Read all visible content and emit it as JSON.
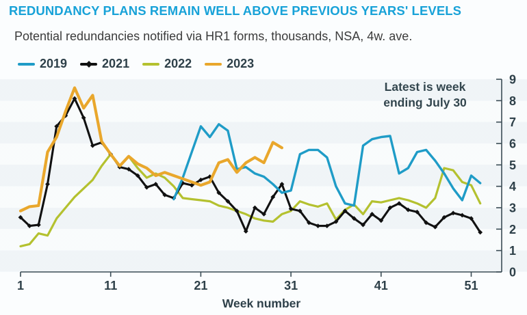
{
  "header": {
    "title": "REDUNDANCY PLANS REMAIN WELL ABOVE PREVIOUS YEARS' LEVELS",
    "subtitle": "Potential redundancies notified via HR1 forms, thousands, NSA, 4w. ave."
  },
  "legend": [
    {
      "label": "2019",
      "color": "#1f9cc7",
      "marker": "none"
    },
    {
      "label": "2021",
      "color": "#111111",
      "marker": "diamond"
    },
    {
      "label": "2022",
      "color": "#b4c12f",
      "marker": "none"
    },
    {
      "label": "2023",
      "color": "#e9a72c",
      "marker": "none"
    }
  ],
  "annotation": {
    "line1": "Latest is week",
    "line2": "ending July 30"
  },
  "colors": {
    "title": "#18a2d8",
    "axis": "#3b4c55",
    "teal_2019": "#1f9cc7",
    "black_2021": "#111111",
    "green_2022": "#b4c12f",
    "orange_2023": "#e9a72c"
  },
  "chart_data": {
    "type": "line",
    "title": "REDUNDANCY PLANS REMAIN WELL ABOVE PREVIOUS YEARS' LEVELS",
    "subtitle": "Potential redundancies notified via HR1 forms, thousands, NSA, 4w. ave.",
    "xlabel": "Week number",
    "ylabel": "",
    "xlim": [
      1,
      52
    ],
    "ylim": [
      0,
      9
    ],
    "x_ticks": [
      1,
      11,
      21,
      31,
      41,
      51
    ],
    "y_ticks": [
      0,
      1,
      2,
      3,
      4,
      5,
      6,
      7,
      8,
      9
    ],
    "grid": false,
    "legend_position": "top-left",
    "y_axis_side": "right",
    "annotation": "Latest is week ending July 30",
    "series": [
      {
        "name": "2019",
        "color": "#1f9cc7",
        "width": 3.4,
        "marker": "none",
        "start_week": 18,
        "values": [
          3.4,
          4.4,
          5.6,
          6.8,
          6.3,
          6.9,
          6.6,
          4.8,
          4.9,
          4.6,
          4.45,
          4.1,
          3.7,
          3.8,
          5.5,
          5.7,
          5.7,
          5.35,
          4.0,
          3.2,
          3.1,
          5.9,
          6.2,
          6.3,
          6.35,
          4.6,
          4.85,
          5.6,
          5.7,
          5.2,
          4.6,
          3.9,
          3.35,
          4.5,
          4.15
        ]
      },
      {
        "name": "2021",
        "color": "#111111",
        "width": 3.1,
        "marker": "diamond",
        "start_week": 1,
        "values": [
          2.55,
          2.15,
          2.2,
          4.1,
          6.8,
          7.3,
          8.1,
          7.2,
          5.9,
          6.05,
          5.5,
          4.9,
          4.8,
          4.5,
          3.95,
          4.1,
          3.6,
          3.45,
          4.15,
          4.05,
          4.3,
          4.45,
          3.7,
          3.3,
          2.85,
          1.9,
          3.0,
          2.7,
          3.5,
          4.1,
          2.95,
          2.85,
          2.3,
          2.15,
          2.15,
          2.35,
          2.85,
          2.5,
          2.2,
          2.7,
          2.4,
          3.0,
          3.2,
          2.9,
          2.8,
          2.3,
          2.1,
          2.55,
          2.75,
          2.65,
          2.5,
          1.85
        ]
      },
      {
        "name": "2022",
        "color": "#b4c12f",
        "width": 3.2,
        "marker": "none",
        "start_week": 1,
        "values": [
          1.2,
          1.3,
          1.8,
          1.7,
          2.5,
          3.0,
          3.5,
          3.9,
          4.3,
          4.95,
          5.5,
          4.95,
          5.4,
          4.85,
          4.4,
          4.6,
          4.4,
          4.0,
          3.45,
          3.4,
          3.35,
          3.3,
          3.1,
          3.0,
          2.85,
          2.7,
          2.5,
          2.4,
          2.35,
          2.7,
          2.85,
          3.3,
          3.15,
          3.05,
          3.2,
          2.45,
          2.9,
          3.15,
          2.7,
          3.3,
          3.25,
          3.35,
          3.45,
          3.35,
          3.2,
          3.0,
          3.45,
          4.85,
          4.75,
          4.2,
          4.05,
          3.2
        ]
      },
      {
        "name": "2023",
        "color": "#e9a72c",
        "width": 4.2,
        "marker": "none",
        "start_week": 1,
        "values": [
          2.85,
          3.05,
          3.1,
          5.6,
          6.3,
          7.5,
          8.6,
          7.65,
          8.25,
          6.1,
          5.5,
          4.95,
          5.4,
          5.05,
          4.85,
          4.5,
          4.65,
          4.5,
          4.35,
          4.2,
          4.05,
          4.2,
          5.1,
          5.25,
          4.65,
          5.1,
          5.35,
          5.1,
          6.05,
          5.8
        ]
      }
    ]
  }
}
